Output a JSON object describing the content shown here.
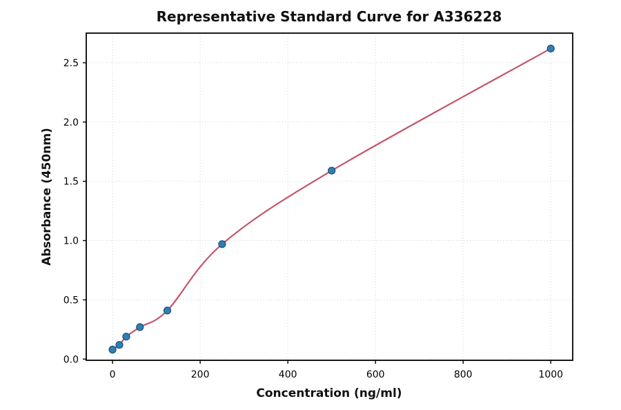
{
  "chart_data": {
    "type": "scatter",
    "title": "Representative Standard Curve for A336228",
    "xlabel": "Concentration (ng/ml)",
    "ylabel": "Absorbance (450nm)",
    "x": [
      0,
      15.6,
      31.25,
      62.5,
      125,
      250,
      500,
      1000
    ],
    "y": [
      0.08,
      0.12,
      0.19,
      0.27,
      0.41,
      0.97,
      1.59,
      2.62
    ],
    "series_note": "single series of standards with smooth fitted curve through points",
    "xticks": [
      0,
      200,
      400,
      600,
      800,
      1000
    ],
    "xtick_labels": [
      "0",
      "200",
      "400",
      "600",
      "800",
      "1000"
    ],
    "yticks": [
      0,
      0.5,
      1.0,
      1.5,
      2.0,
      2.5
    ],
    "ytick_labels": [
      "0.0",
      "0.5",
      "1.0",
      "1.5",
      "2.0",
      "2.5"
    ],
    "xlim": [
      -60,
      1050
    ],
    "ylim": [
      -0.01,
      2.75
    ],
    "grid": true,
    "legend": "none",
    "colors": {
      "point_fill": "#2f7fb8",
      "point_edge": "#1b4f72",
      "curve": "#c4556b",
      "grid": "#cfcfcf",
      "axis": "#000000",
      "background": "#ffffff"
    }
  }
}
